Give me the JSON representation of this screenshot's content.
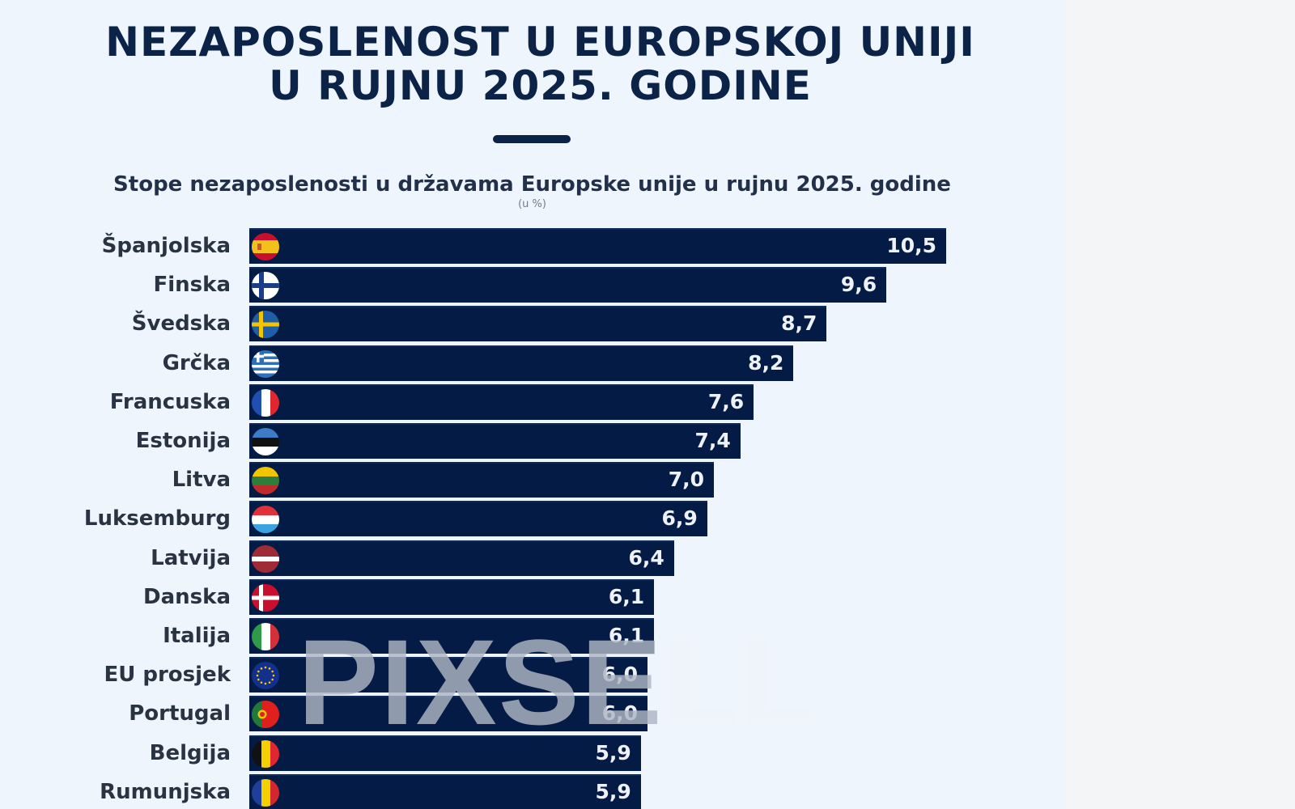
{
  "header": {
    "title_line_1": "NEZAPOSLENOST U EUROPSKOJ UNIJI",
    "title_line_2": "U RUJNU 2025. GODINE",
    "subtitle": "Stope nezaposlenosti u državama Europske unije u rujnu 2025. godine",
    "unit_note": "(u %)"
  },
  "watermark": {
    "main": "PIXSE",
    "faded": "LL"
  },
  "colors": {
    "bar": "#041c45",
    "title": "#0b2347",
    "background": "#eef5fd"
  },
  "chart_data": {
    "type": "bar",
    "orientation": "horizontal",
    "title": "NEZAPOSLENOST U EUROPSKOJ UNIJI U RUJNU 2025. GODINE",
    "subtitle": "Stope nezaposlenosti u državama Europske unije u rujnu 2025. godine",
    "xlabel": "",
    "ylabel": "",
    "unit": "(u %)",
    "xlim": [
      0,
      10.5
    ],
    "grid": false,
    "legend": "none",
    "categories": [
      "Španjolska",
      "Finska",
      "Švedska",
      "Grčka",
      "Francuska",
      "Estonija",
      "Litva",
      "Luksemburg",
      "Latvija",
      "Danska",
      "Italija",
      "EU prosjek",
      "Portugal",
      "Belgija",
      "Rumunjska"
    ],
    "values": [
      10.5,
      9.6,
      8.7,
      8.2,
      7.6,
      7.4,
      7.0,
      6.9,
      6.4,
      6.1,
      6.1,
      6.0,
      6.0,
      5.9,
      5.9
    ],
    "value_labels": [
      "10,5",
      "9,6",
      "8,7",
      "8,2",
      "7,6",
      "7,4",
      "7,0",
      "6,9",
      "6,4",
      "6,1",
      "6,1",
      "6,0",
      "6,0",
      "5,9",
      "5,9"
    ],
    "flags": [
      "es-flag",
      "fi-flag",
      "se-flag",
      "gr-flag",
      "fr-flag",
      "ee-flag",
      "lt-flag",
      "lu-flag",
      "lv-flag",
      "dk-flag",
      "it-flag",
      "eu-flag",
      "pt-flag",
      "be-flag",
      "ro-flag"
    ]
  }
}
